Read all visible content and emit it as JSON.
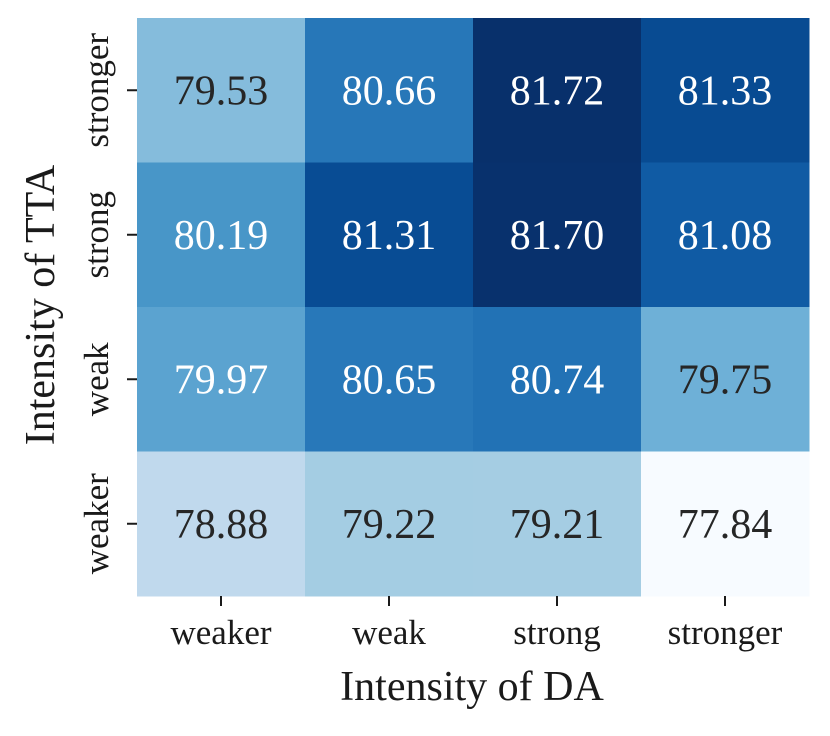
{
  "chart_data": {
    "type": "heatmap",
    "title": "",
    "xlabel": "Intensity of DA",
    "ylabel": "Intensity of TTA",
    "x_categories": [
      "weaker",
      "weak",
      "strong",
      "stronger"
    ],
    "y_categories": [
      "stronger",
      "strong",
      "weak",
      "weaker"
    ],
    "values": [
      [
        79.53,
        80.66,
        81.72,
        81.33
      ],
      [
        80.19,
        81.31,
        81.7,
        81.08
      ],
      [
        79.97,
        80.65,
        80.74,
        79.75
      ],
      [
        78.88,
        79.22,
        79.21,
        77.84
      ]
    ],
    "value_format": "2 decimals",
    "colormap": "Blues",
    "colors": {
      "low": "#f7fbff",
      "mid": "#6baed6",
      "high": "#08306b",
      "text_dark": "#262626",
      "text_light": "#ffffff"
    },
    "colorbar": false,
    "grid": false
  }
}
